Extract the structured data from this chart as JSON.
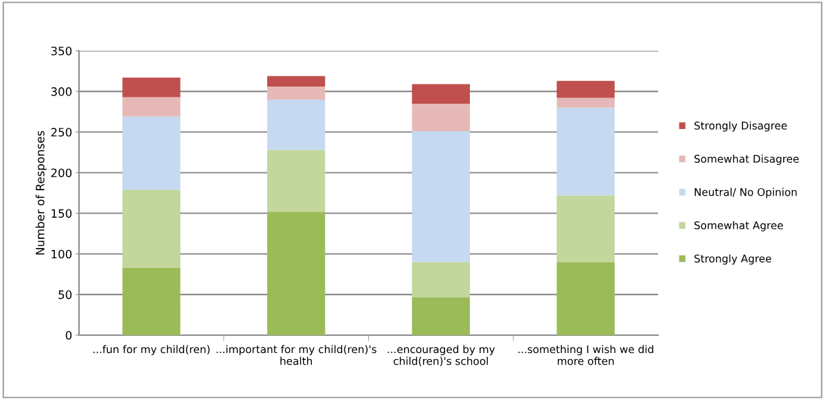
{
  "chart_data": {
    "type": "bar",
    "stacked": true,
    "ylabel": "Number of Responses",
    "categories": [
      "...fun for my child(ren)",
      "...important for my child(ren)'s health",
      "...encouraged by my child(ren)'s school",
      "...something I wish we did more often"
    ],
    "series": [
      {
        "name": "Strongly Agree",
        "color": "#9bbb59",
        "values": [
          83,
          152,
          47,
          90
        ]
      },
      {
        "name": "Somewhat Agree",
        "color": "#c3d69b",
        "values": [
          96,
          76,
          43,
          82
        ]
      },
      {
        "name": "Neutral/ No Opinion",
        "color": "#c6d9f0",
        "values": [
          90,
          62,
          161,
          108
        ]
      },
      {
        "name": "Somewhat Disagree",
        "color": "#e6b9b8",
        "values": [
          24,
          16,
          34,
          12
        ]
      },
      {
        "name": "Strongly Disagree",
        "color": "#c0504d",
        "values": [
          24,
          13,
          24,
          21
        ]
      }
    ],
    "ylim": [
      0,
      350
    ],
    "yticks": [
      0,
      50,
      100,
      150,
      200,
      250,
      300,
      350
    ],
    "grid": "y",
    "legend": "right"
  }
}
